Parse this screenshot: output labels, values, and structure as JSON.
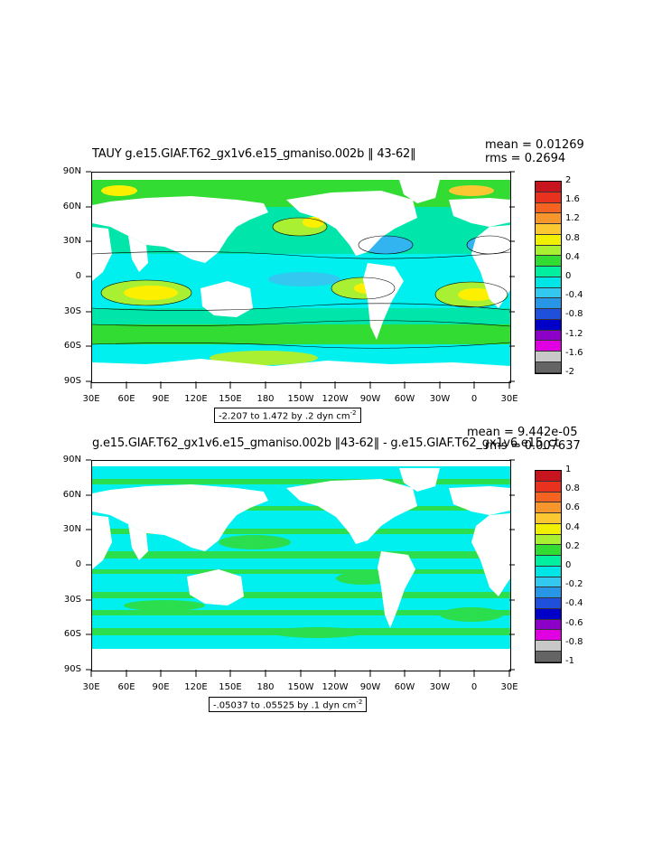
{
  "panel1": {
    "title": "TAUY g.e15.GIAF.T62_gx1v6.e15_gmaniso.002b ‖ 43-62‖",
    "mean_label": "mean = 0.01269",
    "rms_label": "rms = 0.2694",
    "range_label": "-2.207 to 1.472 by .2 dyn cm",
    "range_exp": "-2",
    "colorbar": {
      "labels": [
        "2",
        "1.6",
        "1.2",
        "0.8",
        "0.4",
        "0",
        "-0.4",
        "-0.8",
        "-1.2",
        "-1.6",
        "-2"
      ],
      "colors": [
        "#c8141e",
        "#e8321e",
        "#f46420",
        "#f8962e",
        "#fcc832",
        "#f0f000",
        "#aaf032",
        "#32dc32",
        "#00f0a0",
        "#00e6e6",
        "#32c8f0",
        "#2896e6",
        "#1e50dc",
        "#0000c8",
        "#8c00c8",
        "#e100e1",
        "#c8c8c8",
        "#646464"
      ]
    }
  },
  "panel2": {
    "title": "g.e15.GIAF.T62_gx1v6.e15_gmaniso.002b ‖43-62‖ - g.e15.GIAF.T62_gx1v6.e15_ct",
    "mean_label": "mean = 9.442e-05",
    "rms_label": "rms = 0.007637",
    "range_label": "-.05037 to .05525 by .1 dyn cm",
    "range_exp": "-2",
    "colorbar": {
      "labels": [
        "1",
        "0.8",
        "0.6",
        "0.4",
        "0.2",
        "0",
        "-0.2",
        "-0.4",
        "-0.6",
        "-0.8",
        "-1"
      ],
      "colors": [
        "#c8141e",
        "#e8321e",
        "#f46420",
        "#f8962e",
        "#fcc832",
        "#f0f000",
        "#aaf032",
        "#32dc32",
        "#00f0a0",
        "#00e6e6",
        "#32c8f0",
        "#2896e6",
        "#1e50dc",
        "#0000c8",
        "#8c00c8",
        "#e100e1",
        "#c8c8c8",
        "#646464"
      ]
    }
  },
  "axes": {
    "lat_labels": [
      "90N",
      "60N",
      "30N",
      "0",
      "30S",
      "60S",
      "90S"
    ],
    "lon_labels": [
      "30E",
      "60E",
      "90E",
      "120E",
      "150E",
      "180",
      "150W",
      "120W",
      "90W",
      "60W",
      "30W",
      "0",
      "30E"
    ]
  },
  "colors": {
    "land": "#ffffff",
    "ocean_green": "#32dc32",
    "ocean_cyan": "#00f0f0",
    "ocean_teal": "#00e6aa",
    "ocean_yellow": "#fcf000",
    "ocean_blue": "#32b4f0"
  }
}
